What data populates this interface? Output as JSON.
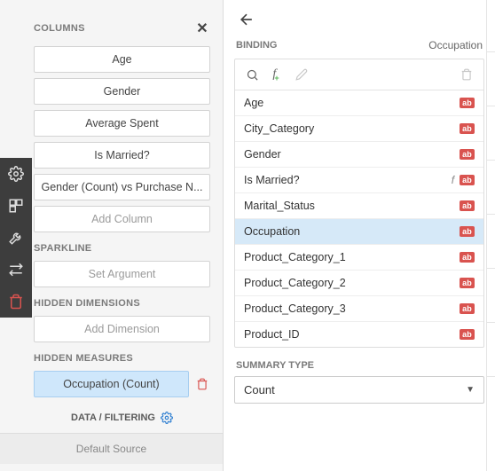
{
  "leftPanel": {
    "sections": {
      "columns": {
        "title": "COLUMNS",
        "items": [
          "Age",
          "Gender",
          "Average Spent",
          "Is Married?",
          "Gender (Count) vs Purchase N..."
        ],
        "addLabel": "Add Column"
      },
      "sparkline": {
        "title": "SPARKLINE",
        "addLabel": "Set Argument"
      },
      "hiddenDimensions": {
        "title": "HIDDEN DIMENSIONS",
        "addLabel": "Add Dimension"
      },
      "hiddenMeasures": {
        "title": "HIDDEN MEASURES",
        "selected": "Occupation (Count)"
      }
    },
    "dataFiltering": "DATA / FILTERING",
    "defaultSource": "Default Source"
  },
  "rightPanel": {
    "bindingLabel": "BINDING",
    "fieldName": "Occupation",
    "fields": [
      {
        "name": "Age",
        "fx": false
      },
      {
        "name": "City_Category",
        "fx": false
      },
      {
        "name": "Gender",
        "fx": false
      },
      {
        "name": "Is Married?",
        "fx": true
      },
      {
        "name": "Marital_Status",
        "fx": false
      },
      {
        "name": "Occupation",
        "fx": false,
        "selected": true
      },
      {
        "name": "Product_Category_1",
        "fx": false
      },
      {
        "name": "Product_Category_2",
        "fx": false
      },
      {
        "name": "Product_Category_3",
        "fx": false
      },
      {
        "name": "Product_ID",
        "fx": false
      }
    ],
    "summaryTypeLabel": "SUMMARY TYPE",
    "summaryTypeValue": "Count"
  },
  "colors": {
    "railBg": "#3d3d3d",
    "panelBg": "#f5f5f5",
    "selectedBg": "#d6e9f8",
    "accent": "#2f7fd1",
    "danger": "#d9534f",
    "badge": "#d9534f"
  }
}
